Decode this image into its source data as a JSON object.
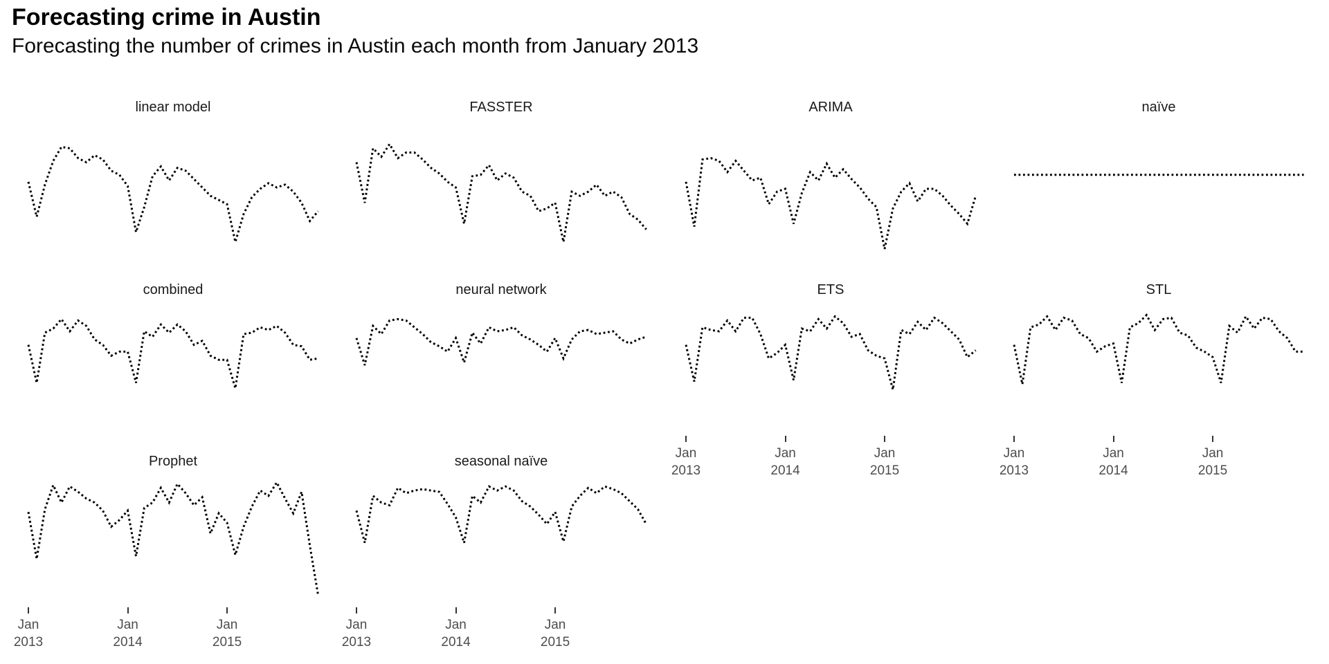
{
  "header": {
    "title": "Forecasting crime in Austin",
    "subtitle": "Forecasting the number of crimes in Austin each month from January 2013"
  },
  "colors": {
    "background": "#ffffff",
    "line": "#000000",
    "panel_title_text": "#1a1a1a",
    "axis_text": "#4d4d4d",
    "tick_mark": "#333333"
  },
  "chart_data": {
    "type": "line",
    "line_style": "dotted",
    "title": "Forecasting crime in Austin",
    "subtitle": "Forecasting the number of crimes in Austin each month from January 2013",
    "facet_layout": {
      "columns": 4,
      "facets_in_order": [
        "linear model",
        "FASSTER",
        "ARIMA",
        "naïve",
        "combined",
        "neural network",
        "ETS",
        "STL",
        "Prophet",
        "seasonal naïve"
      ],
      "facets_with_x_axis": [
        "ETS",
        "STL",
        "Prophet",
        "seasonal naïve"
      ],
      "grid": "off",
      "y_axis": "none shown (relative scale 0-100 used)",
      "legend": "none"
    },
    "x": {
      "unit": "month",
      "start": "2013-01",
      "end": "2015-12",
      "n_points": 36,
      "tick_month_indices": [
        0,
        12,
        24
      ],
      "tick_labels": [
        [
          "Jan",
          "2013"
        ],
        [
          "Jan",
          "2014"
        ],
        [
          "Jan",
          "2015"
        ]
      ]
    },
    "series": [
      {
        "name": "linear model",
        "values": [
          54,
          29,
          52,
          69,
          79,
          78,
          71,
          68,
          73,
          70,
          62,
          59,
          51,
          18,
          36,
          58,
          65,
          55,
          64,
          62,
          56,
          50,
          44,
          41,
          38,
          11,
          31,
          43,
          49,
          53,
          50,
          52,
          47,
          39,
          26,
          33
        ]
      },
      {
        "name": "FASSTER",
        "values": [
          68,
          39,
          78,
          72,
          81,
          71,
          75,
          75,
          70,
          64,
          60,
          54,
          50,
          24,
          58,
          59,
          66,
          55,
          60,
          57,
          47,
          44,
          33,
          35,
          39,
          11,
          47,
          44,
          47,
          52,
          44,
          47,
          43,
          31,
          27,
          20
        ]
      },
      {
        "name": "ARIMA",
        "values": [
          54,
          22,
          70,
          71,
          69,
          61,
          69,
          62,
          55,
          57,
          38,
          47,
          49,
          24,
          46,
          61,
          55,
          67,
          57,
          63,
          56,
          50,
          42,
          36,
          6,
          35,
          47,
          53,
          40,
          49,
          49,
          44,
          37,
          31,
          24,
          44
        ]
      },
      {
        "name": "naïve",
        "values": [
          59,
          59,
          59,
          59,
          59,
          59,
          59,
          59,
          59,
          59,
          59,
          59,
          59,
          59,
          59,
          59,
          59,
          59,
          59,
          59,
          59,
          59,
          59,
          59,
          59,
          59,
          59,
          59,
          59,
          59,
          59,
          59,
          59,
          59,
          59,
          59
        ]
      },
      {
        "name": "combined",
        "values": [
          66,
          38,
          75,
          78,
          85,
          76,
          84,
          80,
          70,
          66,
          58,
          61,
          61,
          38,
          76,
          72,
          81,
          75,
          81,
          76,
          66,
          69,
          58,
          55,
          55,
          34,
          74,
          75,
          79,
          77,
          80,
          75,
          66,
          65,
          55,
          56
        ]
      },
      {
        "name": "neural network",
        "values": [
          71,
          51,
          80,
          74,
          84,
          85,
          84,
          79,
          74,
          68,
          65,
          61,
          71,
          53,
          75,
          67,
          79,
          76,
          77,
          79,
          73,
          70,
          66,
          61,
          71,
          56,
          70,
          76,
          77,
          74,
          75,
          76,
          70,
          67,
          70,
          72
        ]
      },
      {
        "name": "ETS",
        "values": [
          66,
          39,
          79,
          77,
          76,
          84,
          76,
          86,
          86,
          74,
          56,
          60,
          66,
          40,
          78,
          76,
          85,
          78,
          87,
          82,
          72,
          74,
          62,
          58,
          56,
          33,
          77,
          74,
          83,
          77,
          86,
          82,
          76,
          70,
          57,
          62
        ]
      },
      {
        "name": "STL",
        "values": [
          66,
          37,
          79,
          81,
          87,
          77,
          86,
          84,
          74,
          71,
          61,
          65,
          67,
          38,
          79,
          82,
          88,
          77,
          85,
          86,
          75,
          73,
          64,
          61,
          57,
          38,
          80,
          75,
          87,
          78,
          86,
          85,
          76,
          71,
          61,
          61
        ]
      },
      {
        "name": "Prophet",
        "values": [
          70,
          35,
          72,
          90,
          77,
          89,
          85,
          80,
          77,
          71,
          59,
          64,
          71,
          37,
          73,
          77,
          88,
          77,
          91,
          84,
          75,
          81,
          54,
          69,
          62,
          38,
          59,
          74,
          86,
          82,
          92,
          80,
          69,
          85,
          45,
          8
        ]
      },
      {
        "name": "seasonal naïve",
        "values": [
          71,
          47,
          82,
          77,
          75,
          88,
          84,
          86,
          87,
          86,
          85,
          76,
          66,
          47,
          82,
          77,
          89,
          86,
          89,
          86,
          78,
          74,
          68,
          61,
          70,
          48,
          74,
          82,
          88,
          84,
          89,
          87,
          84,
          78,
          72,
          61
        ]
      }
    ]
  }
}
